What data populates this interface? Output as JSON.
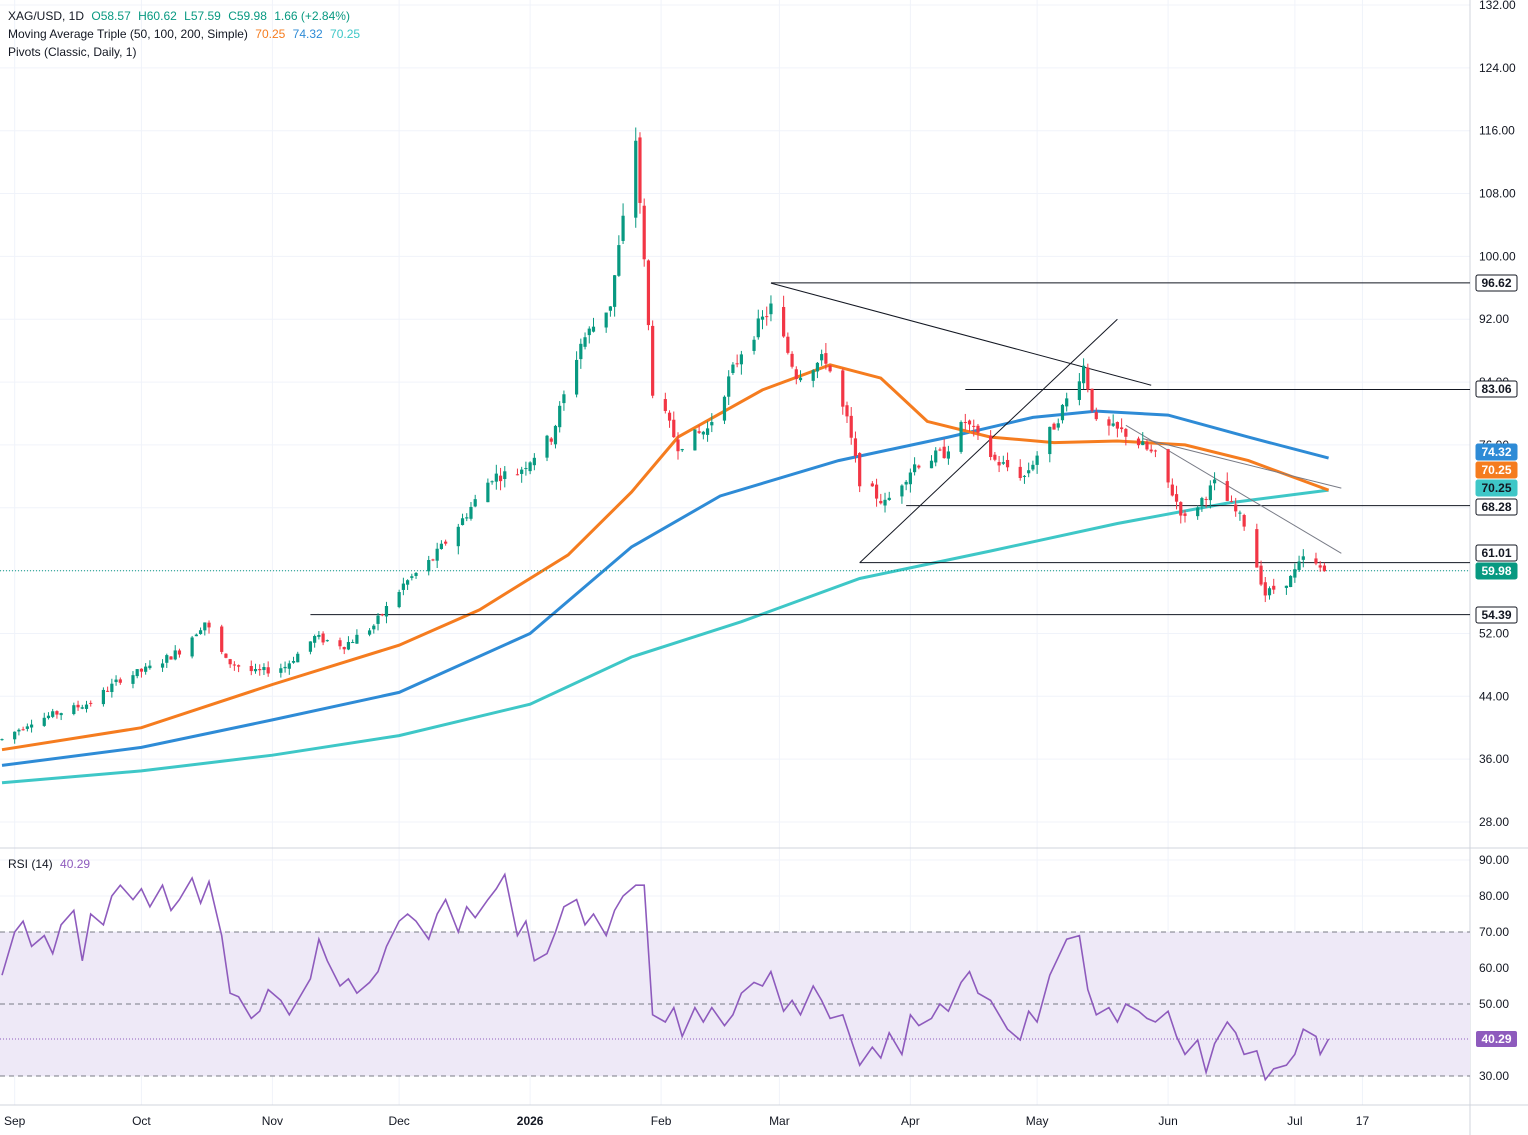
{
  "legend": {
    "symbol": "XAG/USD, 1D",
    "o": "O58.57",
    "h": "H60.62",
    "l": "L57.59",
    "c": "C59.98",
    "change": "1.66 (+2.84%)",
    "ma_label": "Moving Average Triple (50, 100, 200, Simple)",
    "ma_vals": [
      "70.25",
      "74.32",
      "70.25"
    ],
    "pivots_label": "Pivots (Classic, Daily, 1)",
    "rsi_label": "RSI (14)",
    "rsi_val": "40.29"
  },
  "colors": {
    "up": "#089981",
    "down": "#f23645",
    "ma50": "#f57c1f",
    "ma100": "#2e8bd6",
    "ma200": "#3ec7c7",
    "rsi": "#8e5bbd",
    "rsi_band": "#eee9f7"
  },
  "chart_data": [
    {
      "type": "candlestick",
      "title": "XAG/USD, 1D",
      "y_ticks": [
        "132.00",
        "124.00",
        "116.00",
        "108.00",
        "100.00",
        "92.00",
        "84.00",
        "76.00",
        "68.00",
        "60.00",
        "52.00",
        "44.00",
        "36.00",
        "28.00"
      ],
      "ylim": [
        22,
        132
      ],
      "x_ticks": [
        "Sep",
        "Oct",
        "Nov",
        "Dec",
        "2026",
        "Feb",
        "Mar",
        "Apr",
        "May",
        "Jun",
        "Jul",
        "17"
      ],
      "last_price": 59.98,
      "price_tags": [
        {
          "label": "96.62",
          "value": 96.62
        },
        {
          "label": "83.06",
          "value": 83.06
        },
        {
          "label": "74.32",
          "value": 74.32
        },
        {
          "label": "70.25",
          "value": 70.25
        },
        {
          "label": "70.25",
          "value": 70.25
        },
        {
          "label": "68.28",
          "value": 68.28
        },
        {
          "label": "61.01",
          "value": 61.01
        },
        {
          "label": "59.98",
          "value": 59.98
        },
        {
          "label": "54.39",
          "value": 54.39
        }
      ],
      "horizontal_lines": [
        {
          "value": 96.62,
          "from": "2026-02-27"
        },
        {
          "value": 83.06,
          "from": "2026-04-14"
        },
        {
          "value": 68.28,
          "from": "2026-03-31"
        },
        {
          "value": 61.01,
          "from": "2026-03-20"
        },
        {
          "value": 54.39,
          "from": "2025-11-10"
        }
      ],
      "trend_lines": [
        {
          "from": [
            "2026-02-27",
            96.6
          ],
          "to": [
            "2026-05-28",
            83.6
          ],
          "color": "#131722"
        },
        {
          "from": [
            "2026-03-20",
            61.0
          ],
          "to": [
            "2026-05-20",
            92.0
          ],
          "color": "#131722"
        },
        {
          "from": [
            "2026-05-22",
            78.5
          ],
          "to": [
            "2026-07-12",
            62.2
          ],
          "color": "#787b86"
        },
        {
          "from": [
            "2026-05-26",
            76.8
          ],
          "to": [
            "2026-07-12",
            70.5
          ],
          "color": "#787b86"
        }
      ],
      "ohlc_anchors": [
        [
          "2025-08-29",
          38.5
        ],
        [
          "2025-09-05",
          40.8
        ],
        [
          "2025-09-12",
          42.0
        ],
        [
          "2025-09-19",
          43.2
        ],
        [
          "2025-09-26",
          46.2
        ],
        [
          "2025-10-03",
          47.6
        ],
        [
          "2025-10-10",
          49.8
        ],
        [
          "2025-10-16",
          53.5
        ],
        [
          "2025-10-21",
          48.5
        ],
        [
          "2025-10-28",
          47.0
        ],
        [
          "2025-11-04",
          47.8
        ],
        [
          "2025-11-11",
          51.5
        ],
        [
          "2025-11-18",
          50.5
        ],
        [
          "2025-11-25",
          53.0
        ],
        [
          "2025-12-02",
          58.2
        ],
        [
          "2025-12-09",
          61.5
        ],
        [
          "2025-12-16",
          66.5
        ],
        [
          "2025-12-23",
          72.0
        ],
        [
          "2025-12-29",
          72.5
        ],
        [
          "2026-01-06",
          77.0
        ],
        [
          "2026-01-13",
          89.0
        ],
        [
          "2026-01-20",
          94.0
        ],
        [
          "2026-01-26",
          115.0
        ],
        [
          "2026-01-30",
          83.0
        ],
        [
          "2026-02-05",
          76.0
        ],
        [
          "2026-02-12",
          78.0
        ],
        [
          "2026-02-20",
          88.0
        ],
        [
          "2026-02-27",
          93.5
        ],
        [
          "2026-03-05",
          85.0
        ],
        [
          "2026-03-12",
          87.0
        ],
        [
          "2026-03-17",
          79.0
        ],
        [
          "2026-03-20",
          71.5
        ],
        [
          "2026-03-26",
          68.5
        ],
        [
          "2026-04-02",
          73.5
        ],
        [
          "2026-04-09",
          75.0
        ],
        [
          "2026-04-14",
          79.0
        ],
        [
          "2026-04-21",
          74.0
        ],
        [
          "2026-04-28",
          72.0
        ],
        [
          "2026-05-05",
          78.5
        ],
        [
          "2026-05-12",
          86.0
        ],
        [
          "2026-05-15",
          78.5
        ],
        [
          "2026-05-22",
          77.5
        ],
        [
          "2026-05-29",
          74.5
        ],
        [
          "2026-06-05",
          66.5
        ],
        [
          "2026-06-12",
          71.0
        ],
        [
          "2026-06-19",
          66.0
        ],
        [
          "2026-06-24",
          57.0
        ],
        [
          "2026-06-30",
          59.0
        ],
        [
          "2026-07-03",
          61.5
        ],
        [
          "2026-07-08",
          59.98
        ]
      ],
      "ma50": [
        [
          "2025-08-29",
          37.2
        ],
        [
          "2025-10-01",
          40.0
        ],
        [
          "2025-11-01",
          45.5
        ],
        [
          "2025-12-01",
          50.5
        ],
        [
          "2025-12-20",
          55.0
        ],
        [
          "2026-01-10",
          62.0
        ],
        [
          "2026-01-25",
          70.0
        ],
        [
          "2026-02-05",
          77.0
        ],
        [
          "2026-02-25",
          83.0
        ],
        [
          "2026-03-13",
          86.2
        ],
        [
          "2026-03-25",
          84.5
        ],
        [
          "2026-04-05",
          79.0
        ],
        [
          "2026-04-20",
          77.0
        ],
        [
          "2026-05-05",
          76.3
        ],
        [
          "2026-05-20",
          76.5
        ],
        [
          "2026-06-05",
          76.0
        ],
        [
          "2026-06-20",
          74.0
        ],
        [
          "2026-07-09",
          70.25
        ]
      ],
      "ma100": [
        [
          "2025-08-29",
          35.2
        ],
        [
          "2025-10-01",
          37.5
        ],
        [
          "2025-11-01",
          41.0
        ],
        [
          "2025-12-01",
          44.5
        ],
        [
          "2026-01-01",
          52.0
        ],
        [
          "2026-01-25",
          63.0
        ],
        [
          "2026-02-15",
          69.5
        ],
        [
          "2026-03-15",
          74.0
        ],
        [
          "2026-04-10",
          77.0
        ],
        [
          "2026-04-30",
          79.5
        ],
        [
          "2026-05-15",
          80.3
        ],
        [
          "2026-06-01",
          79.8
        ],
        [
          "2026-06-20",
          77.0
        ],
        [
          "2026-07-09",
          74.32
        ]
      ],
      "ma200": [
        [
          "2025-08-29",
          33.0
        ],
        [
          "2025-10-01",
          34.5
        ],
        [
          "2025-11-01",
          36.5
        ],
        [
          "2025-12-01",
          39.0
        ],
        [
          "2026-01-01",
          43.0
        ],
        [
          "2026-01-25",
          49.0
        ],
        [
          "2026-02-20",
          53.5
        ],
        [
          "2026-03-20",
          59.0
        ],
        [
          "2026-04-20",
          62.5
        ],
        [
          "2026-05-20",
          66.0
        ],
        [
          "2026-06-15",
          68.6
        ],
        [
          "2026-07-09",
          70.25
        ]
      ]
    },
    {
      "type": "line",
      "title": "RSI (14)",
      "y_ticks": [
        "90.00",
        "80.00",
        "70.00",
        "60.00",
        "50.00",
        "40.00",
        "30.00"
      ],
      "ylim": [
        25,
        93
      ],
      "bands": {
        "upper": 70,
        "middle": 50,
        "lower": 30
      },
      "last_value": 40.29,
      "points": [
        [
          "2025-08-29",
          58
        ],
        [
          "2025-09-01",
          70
        ],
        [
          "2025-09-03",
          73
        ],
        [
          "2025-09-05",
          66
        ],
        [
          "2025-09-08",
          69
        ],
        [
          "2025-09-10",
          64
        ],
        [
          "2025-09-12",
          72
        ],
        [
          "2025-09-15",
          76
        ],
        [
          "2025-09-17",
          62
        ],
        [
          "2025-09-19",
          75
        ],
        [
          "2025-09-22",
          72
        ],
        [
          "2025-09-24",
          80
        ],
        [
          "2025-09-26",
          83
        ],
        [
          "2025-09-29",
          79
        ],
        [
          "2025-10-01",
          82
        ],
        [
          "2025-10-03",
          77
        ],
        [
          "2025-10-06",
          83
        ],
        [
          "2025-10-08",
          76
        ],
        [
          "2025-10-10",
          79
        ],
        [
          "2025-10-13",
          85
        ],
        [
          "2025-10-15",
          78
        ],
        [
          "2025-10-17",
          84
        ],
        [
          "2025-10-20",
          69
        ],
        [
          "2025-10-22",
          53
        ],
        [
          "2025-10-24",
          52
        ],
        [
          "2025-10-27",
          46
        ],
        [
          "2025-10-29",
          48
        ],
        [
          "2025-10-31",
          54
        ],
        [
          "2025-11-03",
          51
        ],
        [
          "2025-11-05",
          47
        ],
        [
          "2025-11-07",
          51
        ],
        [
          "2025-11-10",
          57
        ],
        [
          "2025-11-12",
          68
        ],
        [
          "2025-11-14",
          62
        ],
        [
          "2025-11-17",
          55
        ],
        [
          "2025-11-19",
          57
        ],
        [
          "2025-11-21",
          53
        ],
        [
          "2025-11-24",
          56
        ],
        [
          "2025-11-26",
          59
        ],
        [
          "2025-11-28",
          66
        ],
        [
          "2025-12-01",
          73
        ],
        [
          "2025-12-03",
          75
        ],
        [
          "2025-12-05",
          73
        ],
        [
          "2025-12-08",
          68
        ],
        [
          "2025-12-10",
          75
        ],
        [
          "2025-12-12",
          79
        ],
        [
          "2025-12-15",
          70
        ],
        [
          "2025-12-17",
          77
        ],
        [
          "2025-12-19",
          74
        ],
        [
          "2025-12-22",
          79
        ],
        [
          "2025-12-24",
          82
        ],
        [
          "2025-12-26",
          86
        ],
        [
          "2025-12-29",
          69
        ],
        [
          "2025-12-31",
          73
        ],
        [
          "2026-01-02",
          62
        ],
        [
          "2026-01-05",
          64
        ],
        [
          "2026-01-07",
          70
        ],
        [
          "2026-01-09",
          77
        ],
        [
          "2026-01-12",
          79
        ],
        [
          "2026-01-14",
          72
        ],
        [
          "2026-01-16",
          75
        ],
        [
          "2026-01-19",
          69
        ],
        [
          "2026-01-21",
          76
        ],
        [
          "2026-01-23",
          80
        ],
        [
          "2026-01-26",
          83
        ],
        [
          "2026-01-28",
          83
        ],
        [
          "2026-01-30",
          47
        ],
        [
          "2026-02-02",
          45
        ],
        [
          "2026-02-04",
          49
        ],
        [
          "2026-02-06",
          41
        ],
        [
          "2026-02-09",
          49
        ],
        [
          "2026-02-11",
          45
        ],
        [
          "2026-02-13",
          49
        ],
        [
          "2026-02-16",
          44
        ],
        [
          "2026-02-18",
          47
        ],
        [
          "2026-02-20",
          53
        ],
        [
          "2026-02-23",
          56
        ],
        [
          "2026-02-25",
          55
        ],
        [
          "2026-02-27",
          59
        ],
        [
          "2026-03-02",
          48
        ],
        [
          "2026-03-04",
          51
        ],
        [
          "2026-03-06",
          47
        ],
        [
          "2026-03-09",
          55
        ],
        [
          "2026-03-11",
          51
        ],
        [
          "2026-03-13",
          46
        ],
        [
          "2026-03-16",
          47
        ],
        [
          "2026-03-18",
          40
        ],
        [
          "2026-03-20",
          33
        ],
        [
          "2026-03-23",
          38
        ],
        [
          "2026-03-25",
          35
        ],
        [
          "2026-03-27",
          42
        ],
        [
          "2026-03-30",
          36
        ],
        [
          "2026-04-01",
          47
        ],
        [
          "2026-04-03",
          44
        ],
        [
          "2026-04-06",
          46
        ],
        [
          "2026-04-08",
          50
        ],
        [
          "2026-04-10",
          48
        ],
        [
          "2026-04-13",
          56
        ],
        [
          "2026-04-15",
          59
        ],
        [
          "2026-04-17",
          53
        ],
        [
          "2026-04-20",
          51
        ],
        [
          "2026-04-22",
          47
        ],
        [
          "2026-04-24",
          43
        ],
        [
          "2026-04-27",
          40
        ],
        [
          "2026-04-29",
          48
        ],
        [
          "2026-05-01",
          45
        ],
        [
          "2026-05-04",
          58
        ],
        [
          "2026-05-06",
          63
        ],
        [
          "2026-05-08",
          68
        ],
        [
          "2026-05-11",
          69
        ],
        [
          "2026-05-13",
          54
        ],
        [
          "2026-05-15",
          47
        ],
        [
          "2026-05-18",
          49
        ],
        [
          "2026-05-20",
          45
        ],
        [
          "2026-05-22",
          50
        ],
        [
          "2026-05-25",
          48
        ],
        [
          "2026-05-27",
          46
        ],
        [
          "2026-05-29",
          45
        ],
        [
          "2026-06-01",
          48
        ],
        [
          "2026-06-03",
          41
        ],
        [
          "2026-06-05",
          36
        ],
        [
          "2026-06-08",
          40
        ],
        [
          "2026-06-10",
          31
        ],
        [
          "2026-06-12",
          39
        ],
        [
          "2026-06-15",
          45
        ],
        [
          "2026-06-17",
          42
        ],
        [
          "2026-06-19",
          36
        ],
        [
          "2026-06-22",
          37
        ],
        [
          "2026-06-24",
          29
        ],
        [
          "2026-06-26",
          32
        ],
        [
          "2026-06-29",
          33
        ],
        [
          "2026-07-01",
          36
        ],
        [
          "2026-07-03",
          43
        ],
        [
          "2026-07-06",
          41
        ],
        [
          "2026-07-07",
          36
        ],
        [
          "2026-07-09",
          40.29
        ]
      ]
    }
  ]
}
